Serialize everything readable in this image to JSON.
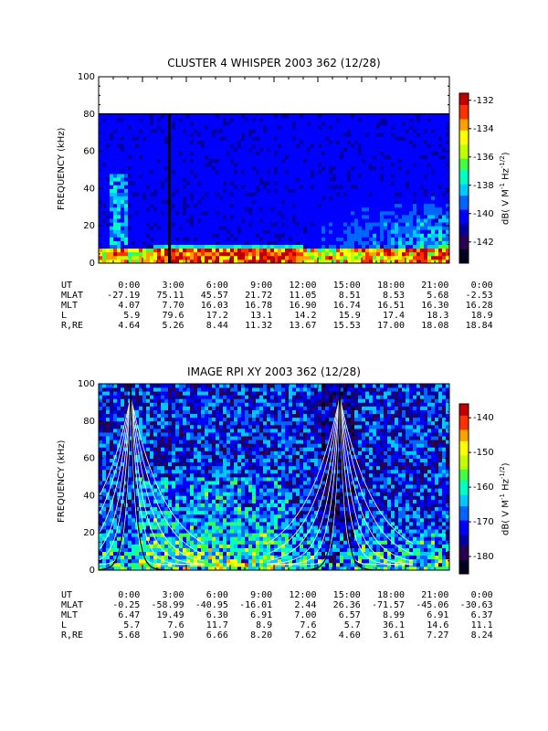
{
  "panels": [
    {
      "title": "CLUSTER 4 WHISPER 2003 362 (12/28)",
      "ylabel": "FREQUENCY (kHz)",
      "cbar_label": "dB( V M⁻¹ Hz⁻¹ᐟ²)",
      "cbar_label_text": "dB( V M^-1 Hz^-1/2)",
      "cbar_ticks": [
        "-132",
        "-134",
        "-136",
        "-138",
        "-140",
        "-142"
      ],
      "ephemeris": [
        {
          "label": "UT",
          "values": [
            "0:00",
            "3:00",
            "6:00",
            "9:00",
            "12:00",
            "15:00",
            "18:00",
            "21:00",
            "0:00"
          ]
        },
        {
          "label": "MLAT",
          "values": [
            "-27.19",
            "75.11",
            "45.57",
            "21.72",
            "11.05",
            "8.51",
            "8.53",
            "5.68",
            "-2.53"
          ]
        },
        {
          "label": "MLT",
          "values": [
            "4.07",
            "7.70",
            "16.03",
            "16.78",
            "16.90",
            "16.74",
            "16.51",
            "16.30",
            "16.28"
          ]
        },
        {
          "label": "L",
          "values": [
            "5.9",
            "79.6",
            "17.2",
            "13.1",
            "14.2",
            "15.9",
            "17.4",
            "18.3",
            "18.9"
          ]
        },
        {
          "label": "R,RE",
          "values": [
            "4.64",
            "5.26",
            "8.44",
            "11.32",
            "13.67",
            "15.53",
            "17.00",
            "18.08",
            "18.84"
          ]
        }
      ]
    },
    {
      "title": "IMAGE RPI XY 2003 362 (12/28)",
      "ylabel": "FREQUENCY (kHz)",
      "cbar_label_text": "dB( V M^-1 Hz^-1/2)",
      "cbar_ticks": [
        "-140",
        "-150",
        "-160",
        "-170",
        "-180"
      ],
      "ephemeris": [
        {
          "label": "UT",
          "values": [
            "0:00",
            "3:00",
            "6:00",
            "9:00",
            "12:00",
            "15:00",
            "18:00",
            "21:00",
            "0:00"
          ]
        },
        {
          "label": "MLAT",
          "values": [
            "-0.25",
            "-58.99",
            "-40.95",
            "-16.01",
            "2.44",
            "26.36",
            "-71.57",
            "-45.06",
            "-30.63"
          ]
        },
        {
          "label": "MLT",
          "values": [
            "6.47",
            "19.49",
            "6.30",
            "6.91",
            "7.00",
            "6.57",
            "8.99",
            "6.91",
            "6.37"
          ]
        },
        {
          "label": "L",
          "values": [
            "5.7",
            "7.6",
            "11.7",
            "8.9",
            "7.6",
            "5.7",
            "36.1",
            "14.6",
            "11.1"
          ]
        },
        {
          "label": "R,RE",
          "values": [
            "5.68",
            "1.90",
            "6.66",
            "8.20",
            "7.62",
            "4.60",
            "3.61",
            "7.27",
            "8.24"
          ]
        }
      ]
    }
  ],
  "chart_data": [
    {
      "type": "heatmap",
      "title": "CLUSTER 4 WHISPER 2003 362 (12/28)",
      "xlabel": "UT",
      "ylabel": "FREQUENCY (kHz)",
      "xlim": [
        "0:00",
        "24:00"
      ],
      "ylim": [
        0,
        100
      ],
      "yticks": [
        0,
        20,
        40,
        60,
        80,
        100
      ],
      "colorbar": {
        "label": "dB( V M^-1 Hz^-1/2)",
        "range": [
          -143.5,
          -131.5
        ],
        "ticks": [
          -132,
          -134,
          -136,
          -138,
          -140,
          -142
        ]
      },
      "data_top_frequency_khz": 80
    },
    {
      "type": "heatmap",
      "title": "IMAGE RPI XY 2003 362 (12/28)",
      "xlabel": "UT",
      "ylabel": "FREQUENCY (kHz)",
      "xlim": [
        "0:00",
        "24:00"
      ],
      "ylim": [
        0,
        100
      ],
      "yticks": [
        0,
        20,
        40,
        60,
        80,
        100
      ],
      "colorbar": {
        "label": "dB( V M^-1 Hz^-1/2)",
        "range": [
          -185,
          -136
        ],
        "ticks": [
          -140,
          -150,
          -160,
          -170,
          -180
        ]
      },
      "overlay": "white and black model frequency curves"
    }
  ],
  "colors": {
    "colormap": [
      "#000020",
      "#2a0050",
      "#0000a0",
      "#0000ff",
      "#0064ff",
      "#00c8ff",
      "#00ffc0",
      "#40ff40",
      "#c0ff00",
      "#ffff00",
      "#ffa000",
      "#ff3000",
      "#c00000"
    ]
  }
}
